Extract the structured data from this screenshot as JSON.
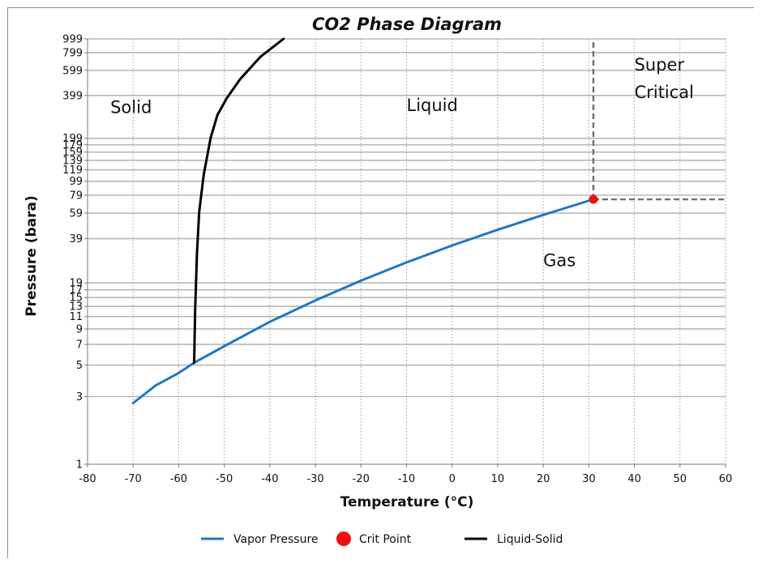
{
  "chart_data": {
    "type": "line",
    "title": "CO2 Phase Diagram",
    "xlabel": "Temperature (°C)",
    "ylabel": "Pressure (bara)",
    "xlim": [
      -80,
      60
    ],
    "ylim": [
      1,
      999
    ],
    "yscale": "log",
    "xticks": [
      -80,
      -70,
      -60,
      -50,
      -40,
      -30,
      -20,
      -10,
      0,
      10,
      20,
      30,
      40,
      50,
      60
    ],
    "yticks": [
      1,
      3,
      5,
      7,
      9,
      11,
      13,
      15,
      17,
      19,
      39,
      59,
      79,
      99,
      119,
      139,
      159,
      179,
      199,
      399,
      599,
      799,
      999
    ],
    "grid": true,
    "series": [
      {
        "name": "Vapor Pressure",
        "color": "#1f77c4",
        "style": "solid",
        "x": [
          -70,
          -65,
          -60,
          -56.6,
          -50,
          -40,
          -30,
          -20,
          -10,
          0,
          10,
          20,
          25,
          31
        ],
        "y": [
          2.7,
          3.6,
          4.4,
          5.2,
          6.8,
          10.1,
          14.3,
          19.7,
          26.5,
          34.9,
          45.0,
          57.3,
          64.3,
          73.8
        ]
      },
      {
        "name": "Crit Point",
        "color": "#ee1111",
        "style": "marker",
        "x": [
          31
        ],
        "y": [
          73.8
        ]
      },
      {
        "name": "Liquid-Solid",
        "color": "#000000",
        "style": "solid",
        "x": [
          -56.6,
          -56.4,
          -56.0,
          -55.5,
          -54.5,
          -53.0,
          -51.5,
          -49.5,
          -46.5,
          -42.0,
          -37.0
        ],
        "y": [
          5.2,
          12,
          30,
          60,
          110,
          200,
          290,
          380,
          520,
          750,
          999
        ]
      }
    ],
    "reference_lines": [
      {
        "name": "critical-temperature",
        "orientation": "vertical",
        "x": 31,
        "from_y": 73.8,
        "to_y": 999,
        "color": "#707070",
        "style": "dashed"
      },
      {
        "name": "critical-pressure",
        "orientation": "horizontal",
        "y": 73.8,
        "from_x": 31,
        "to_x": 60,
        "color": "#707070",
        "style": "dashed"
      }
    ],
    "annotations": [
      {
        "name": "label-solid",
        "lines": [
          "Solid"
        ],
        "x": -75,
        "y": 300
      },
      {
        "name": "label-liquid",
        "lines": [
          "Liquid"
        ],
        "x": -10,
        "y": 310
      },
      {
        "name": "label-gas",
        "lines": [
          "Gas"
        ],
        "x": 20,
        "y": 25
      },
      {
        "name": "label-supercritical",
        "lines": [
          "Super",
          "Critical"
        ],
        "x": 40,
        "y": 600
      }
    ],
    "legend": {
      "position": "bottom",
      "entries": [
        "Vapor Pressure",
        "Crit Point",
        "Liquid-Solid"
      ]
    }
  }
}
